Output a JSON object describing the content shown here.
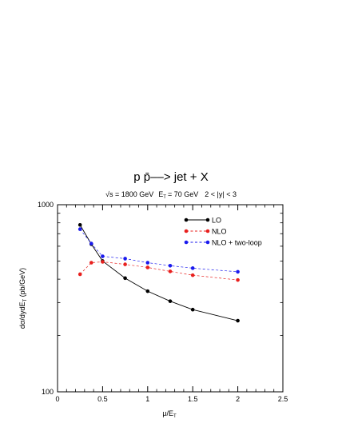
{
  "chart_data": {
    "type": "line",
    "title": "p p̄––> jet + X",
    "subtitle_parts": [
      "√s = 1800 GeV",
      "E",
      "T",
      "= 70 GeV",
      "2 < |y| < 3"
    ],
    "ylabel_parts": [
      "dσ/dydE",
      "T",
      " (pb/GeV)"
    ],
    "xlabel_parts": [
      "μ/E",
      "T"
    ],
    "xlim": [
      0,
      2.5
    ],
    "ylim": [
      100,
      1000
    ],
    "yscale": "log",
    "x_ticks": [
      0,
      0.5,
      1,
      1.5,
      2,
      2.5
    ],
    "x_tick_labels": [
      "0",
      "0.5",
      "1",
      "1.5",
      "2",
      "2.5"
    ],
    "y_ticks": [
      100,
      1000
    ],
    "y_tick_labels": [
      "100",
      "1000"
    ],
    "grid": false,
    "legend_position": "top-right",
    "x": [
      0.25,
      0.375,
      0.5,
      0.75,
      1.0,
      1.25,
      1.5,
      2.0
    ],
    "series": [
      {
        "name": "LO",
        "color": "#000000",
        "dash": "solid",
        "values": [
          780,
          615,
          500,
          405,
          345,
          305,
          275,
          240
        ]
      },
      {
        "name": "NLO",
        "color": "#e8201e",
        "dash": "dashed",
        "values": [
          425,
          490,
          495,
          480,
          462,
          440,
          420,
          396
        ]
      },
      {
        "name": "NLO + two-loop",
        "color": "#1a1aee",
        "dash": "dashed",
        "values": [
          740,
          620,
          530,
          515,
          490,
          472,
          458,
          438
        ]
      }
    ]
  }
}
